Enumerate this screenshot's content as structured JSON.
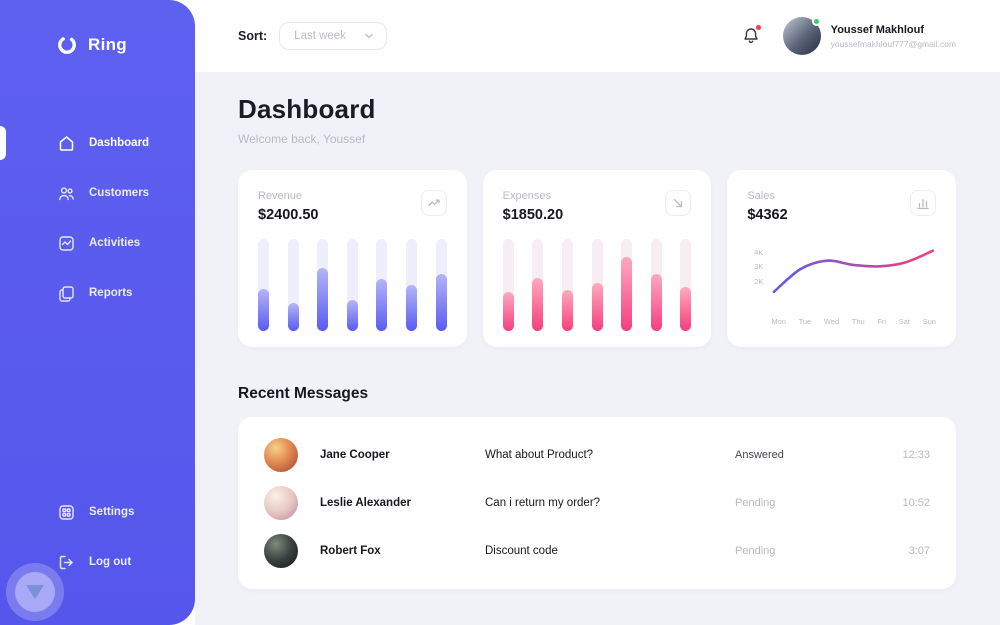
{
  "app": {
    "accent": "#5a5bf0",
    "pink": "#f43f7c",
    "sidebar_color": "#5a5cee",
    "background": "#f1f2f8"
  },
  "sidebar": {
    "logo_text": "Ring",
    "logo_icon": "ring-logo-icon",
    "items": [
      {
        "label": "Dashboard",
        "icon": "home-icon",
        "active": true
      },
      {
        "label": "Customers",
        "icon": "users-icon",
        "active": false
      },
      {
        "label": "Activities",
        "icon": "activity-icon",
        "active": false
      },
      {
        "label": "Reports",
        "icon": "reports-icon",
        "active": false
      }
    ],
    "footer_items": [
      {
        "label": "Settings",
        "icon": "settings-icon"
      },
      {
        "label": "Log out",
        "icon": "logout-icon"
      }
    ]
  },
  "topbar": {
    "sort_label": "Sort:",
    "sort_value": "Last week",
    "notifications_icon": "bell-icon",
    "has_notification": true,
    "user": {
      "name": "Youssef Makhlouf",
      "email": "youssefmakhlouf777@gmail.com",
      "online": true
    }
  },
  "header": {
    "title": "Dashboard",
    "subtitle": "Welcome back, Youssef"
  },
  "chart_data": [
    {
      "type": "bar",
      "title": "Revenue",
      "value": "$2400.50",
      "icon": "line-chart-icon",
      "color": "#5a5bf0",
      "values": [
        46,
        30,
        68,
        34,
        57,
        50,
        62
      ],
      "ylim": [
        0,
        100
      ],
      "unit": "percent-of-track",
      "grid": false
    },
    {
      "type": "bar",
      "title": "Expenses",
      "value": "$1850.20",
      "icon": "send-icon",
      "color": "#f43f7c",
      "values": [
        42,
        58,
        45,
        52,
        80,
        62,
        48
      ],
      "ylim": [
        0,
        100
      ],
      "unit": "percent-of-track",
      "grid": false
    },
    {
      "type": "line",
      "title": "Sales",
      "value": "$4362",
      "icon": "bar-chart-icon",
      "x": [
        "Mon",
        "Tue",
        "Wed",
        "Thu",
        "Fri",
        "Sat",
        "Sun"
      ],
      "values": [
        1200,
        2800,
        3400,
        3100,
        3000,
        3300,
        4100
      ],
      "yticks": [
        {
          "label": "4K",
          "value": 4000
        },
        {
          "label": "3K",
          "value": 3000
        },
        {
          "label": "2K",
          "value": 2000
        }
      ],
      "ylim": [
        0,
        4500
      ],
      "grid": false,
      "stroke_gradient": [
        "#5a5bf0",
        "#f43f7c"
      ]
    }
  ],
  "messages": {
    "title": "Recent Messages",
    "rows": [
      {
        "name": "Jane Cooper",
        "message": "What about Product?",
        "status": "Answered",
        "time": "12:33"
      },
      {
        "name": "Leslie Alexander",
        "message": "Can i return my order?",
        "status": "Pending",
        "time": "10:52"
      },
      {
        "name": "Robert Fox",
        "message": "Discount code",
        "status": "Pending",
        "time": "3:07"
      }
    ]
  }
}
